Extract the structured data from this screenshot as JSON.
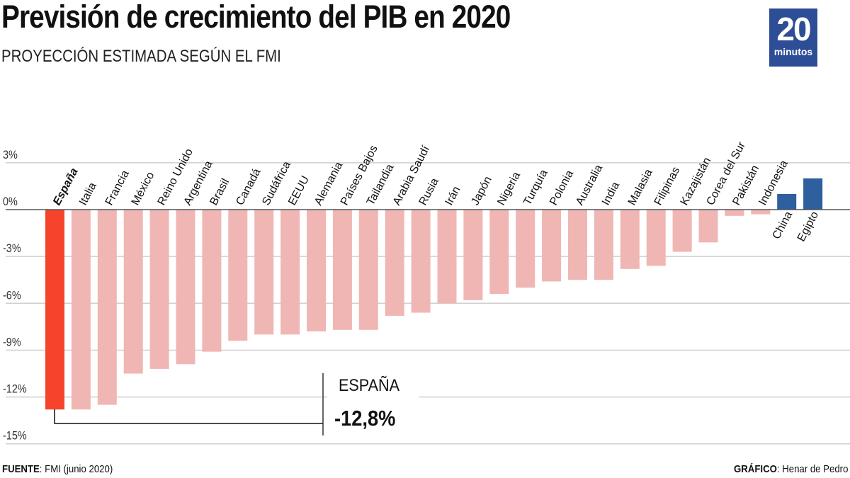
{
  "header": {
    "title": "Previsión de crecimiento del PIB en 2020",
    "subtitle": "PROYECCIÓN ESTIMADA SEGÚN EL FMI"
  },
  "logo": {
    "number": "20",
    "word": "minutos",
    "color": "#2d4d96"
  },
  "footer": {
    "source_label": "FUENTE",
    "source_value": ": FMI (junio 2020)",
    "credit_label": "GRÁFICO",
    "credit_value": ": Henar de Pedro"
  },
  "callout": {
    "label": "ESPAÑA",
    "value": "-12,8%"
  },
  "colors": {
    "highlight": "#f5442b",
    "negative": "#f0b6b4",
    "positive": "#2e5f9e"
  },
  "chart_data": {
    "type": "bar",
    "title": "Previsión de crecimiento del PIB en 2020",
    "subtitle": "PROYECCIÓN ESTIMADA SEGÚN EL FMI",
    "xlabel": "",
    "ylabel": "",
    "ylim": [
      -15,
      3
    ],
    "yticks": [
      3,
      0,
      -3,
      -6,
      -9,
      -12,
      -15
    ],
    "ytick_labels": [
      "3%",
      "0%",
      "-3%",
      "-6%",
      "-9%",
      "-12%",
      "-15%"
    ],
    "grid": true,
    "highlight_category": "España",
    "categories": [
      "España",
      "Italia",
      "Francia",
      "México",
      "Reino Unido",
      "Argentina",
      "Brasil",
      "Canadá",
      "Sudáfrica",
      "EEUU",
      "Alemania",
      "Países Bajos",
      "Tailandia",
      "Arabia Saudí",
      "Rusia",
      "Irán",
      "Japón",
      "Nigeria",
      "Turquía",
      "Polonia",
      "Australia",
      "India",
      "Malasia",
      "Filipinas",
      "Kazajistán",
      "Corea del Sur",
      "Pakistán",
      "Indonesia",
      "China",
      "Egipto"
    ],
    "values": [
      -12.8,
      -12.8,
      -12.5,
      -10.5,
      -10.2,
      -9.9,
      -9.1,
      -8.4,
      -8.0,
      -8.0,
      -7.8,
      -7.7,
      -7.7,
      -6.8,
      -6.6,
      -6.0,
      -5.8,
      -5.4,
      -5.0,
      -4.6,
      -4.5,
      -4.5,
      -3.8,
      -3.6,
      -2.7,
      -2.1,
      -0.4,
      -0.3,
      1.0,
      2.0
    ]
  }
}
